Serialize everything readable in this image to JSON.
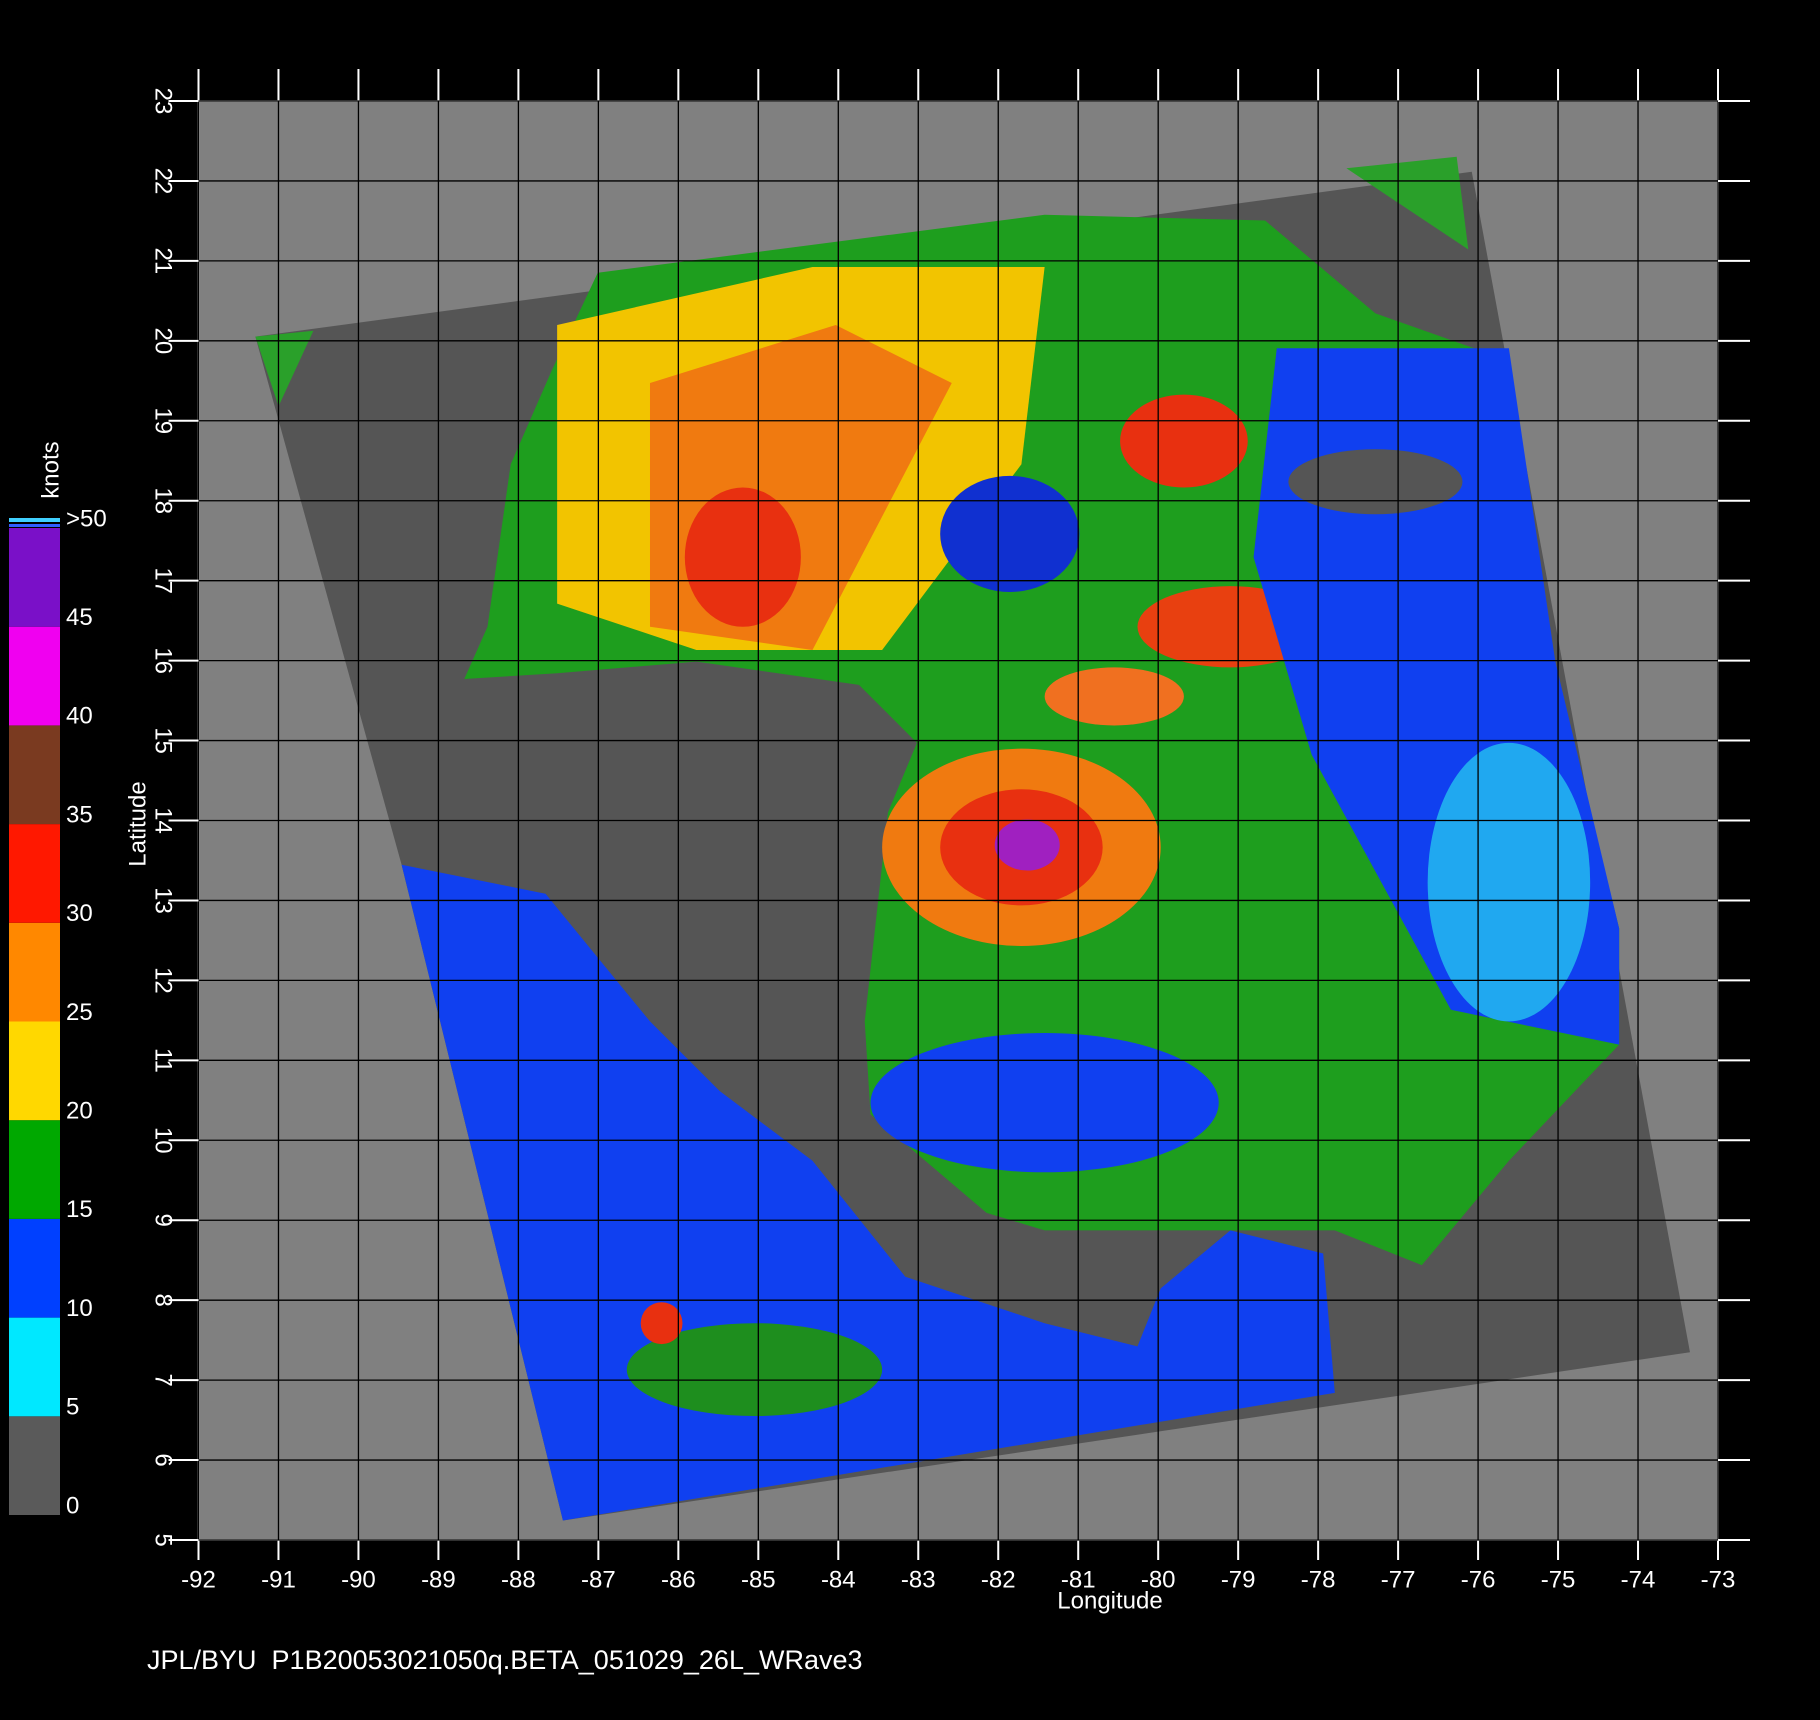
{
  "chart_data": {
    "type": "map",
    "xlabel": "Longitude",
    "ylabel": "Latitude",
    "xlim": [
      -92,
      -73
    ],
    "ylim": [
      5,
      23
    ],
    "xticks": [
      -92,
      -91,
      -90,
      -89,
      -88,
      -87,
      -86,
      -85,
      -84,
      -83,
      -82,
      -81,
      -80,
      -79,
      -78,
      -77,
      -76,
      -75,
      -74,
      -73
    ],
    "yticks": [
      5,
      6,
      7,
      8,
      9,
      10,
      11,
      12,
      13,
      14,
      15,
      16,
      17,
      18,
      19,
      20,
      21,
      22,
      23
    ],
    "grid": true,
    "colorbar": {
      "label": "knots",
      "ticks": [
        0,
        5,
        10,
        15,
        20,
        25,
        30,
        35,
        40,
        {
          "value": 45,
          "label": "45"
        },
        {
          "value": 50,
          "label": ">50"
        }
      ],
      "colors": [
        "#5a5a5a",
        "#00e8ff",
        "#0040ff",
        "#00a800",
        "#ffd800",
        "#ff8800",
        "#ff1800",
        "#7a3a20",
        "#f000f0",
        "#7a10c8"
      ]
    },
    "footer": "JPL/BYU  P1B20053021050q.BETA_051029_26L_WRave3"
  }
}
